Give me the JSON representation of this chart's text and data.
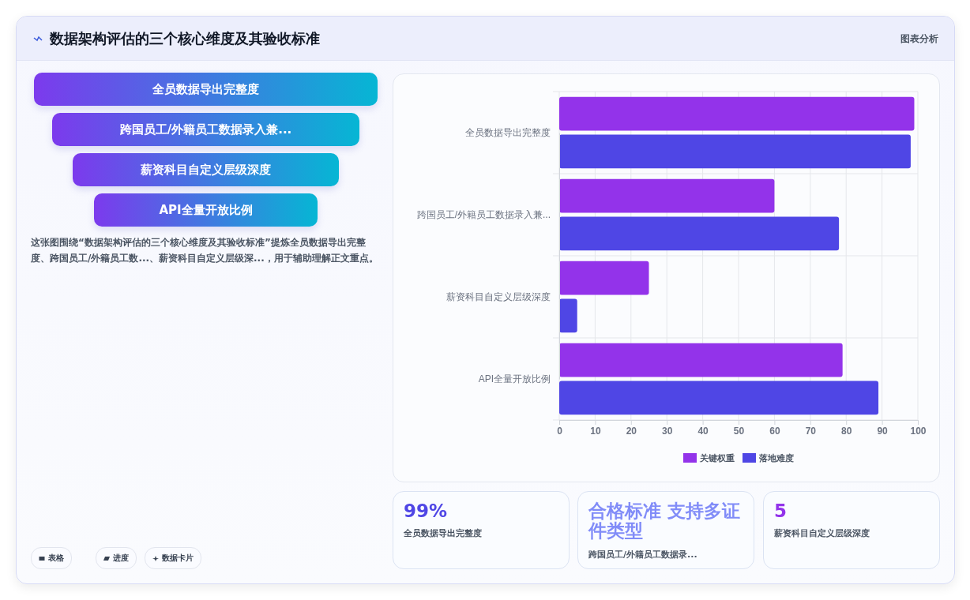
{
  "chart_data": {
    "type": "bar",
    "orientation": "horizontal",
    "title": "数据架构评估的三个核心维度及其验收标准",
    "categories": [
      "全员数据导出完整度",
      "跨国员工/外籍员工数据录入兼...",
      "薪资科目自定义层级深度",
      "API全量开放比例"
    ],
    "series": [
      {
        "name": "关键权重",
        "color": "#9333ea",
        "values": [
          99,
          60,
          25,
          79
        ]
      },
      {
        "name": "落地难度",
        "color": "#4f46e5",
        "values": [
          98,
          78,
          5,
          89
        ]
      }
    ],
    "xlim": [
      0,
      100
    ],
    "xticks": [
      0,
      10,
      20,
      30,
      40,
      50,
      60,
      70,
      80,
      90,
      100
    ],
    "grid": true,
    "legend": "bottom",
    "annotations": [
      "图表分析",
      "全员数据导出完整度",
      "跨国员工/外籍员工数据录入兼...",
      "薪资科目自定义层级深度",
      "API全量开放比例",
      "这张图围绕“数据架构评估的三个核心维度及其验收标准”提炼全员数据导出完整度、跨国员工/外籍员工数...、薪资科目自定义层级深...，用于辅助理解正文重点。",
      "表格",
      "进度",
      "数据卡片",
      "99%",
      "全员数据导出完整度",
      "合格标准 支持多证件类型",
      "跨国员工/外籍员工数据录...",
      "5",
      "薪资科目自定义层级深度"
    ]
  }
}
